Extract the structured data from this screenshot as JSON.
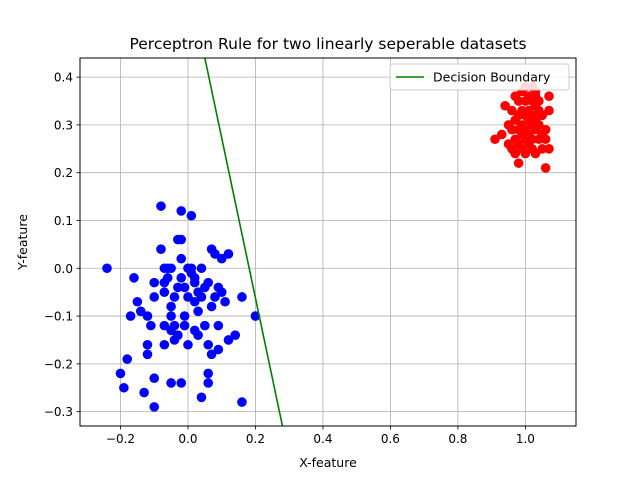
{
  "chart_data": {
    "type": "scatter",
    "title": "Perceptron Rule for two linearly seperable datasets",
    "xlabel": "X-feature",
    "ylabel": "Y-feature",
    "xlim": [
      -0.32,
      1.15
    ],
    "ylim": [
      -0.33,
      0.44
    ],
    "grid": true,
    "legend_position": "top-right",
    "x_ticks": [
      -0.2,
      0.0,
      0.2,
      0.4,
      0.6,
      0.8,
      1.0
    ],
    "x_tick_labels": [
      "−0.2",
      "0.0",
      "0.2",
      "0.4",
      "0.6",
      "0.8",
      "1.0"
    ],
    "y_ticks": [
      -0.3,
      -0.2,
      -0.1,
      0.0,
      0.1,
      0.2,
      0.3,
      0.4
    ],
    "y_tick_labels": [
      "−0.3",
      "−0.2",
      "−0.1",
      "0.0",
      "0.1",
      "0.2",
      "0.3",
      "0.4"
    ],
    "series": [
      {
        "color": "#0000ff",
        "kind": "scatter",
        "points": [
          [
            -0.24,
            0.0
          ],
          [
            -0.2,
            -0.22
          ],
          [
            -0.19,
            -0.25
          ],
          [
            -0.18,
            -0.19
          ],
          [
            -0.17,
            -0.1
          ],
          [
            -0.16,
            -0.02
          ],
          [
            -0.15,
            -0.07
          ],
          [
            -0.14,
            -0.09
          ],
          [
            -0.13,
            -0.26
          ],
          [
            -0.12,
            -0.18
          ],
          [
            -0.12,
            -0.16
          ],
          [
            -0.11,
            -0.12
          ],
          [
            -0.12,
            -0.1
          ],
          [
            -0.1,
            -0.06
          ],
          [
            -0.1,
            -0.03
          ],
          [
            -0.1,
            -0.23
          ],
          [
            -0.1,
            -0.29
          ],
          [
            -0.08,
            0.13
          ],
          [
            -0.08,
            0.04
          ],
          [
            -0.07,
            0.0
          ],
          [
            -0.07,
            -0.03
          ],
          [
            -0.07,
            -0.05
          ],
          [
            -0.07,
            -0.12
          ],
          [
            -0.07,
            -0.16
          ],
          [
            -0.06,
            0.0
          ],
          [
            -0.06,
            -0.02
          ],
          [
            -0.05,
            -0.08
          ],
          [
            -0.05,
            -0.1
          ],
          [
            -0.05,
            -0.13
          ],
          [
            -0.05,
            -0.24
          ],
          [
            -0.05,
            0.0
          ],
          [
            -0.04,
            -0.06
          ],
          [
            -0.04,
            -0.12
          ],
          [
            -0.04,
            -0.15
          ],
          [
            -0.03,
            0.06
          ],
          [
            -0.03,
            -0.04
          ],
          [
            -0.03,
            -0.14
          ],
          [
            -0.02,
            -0.24
          ],
          [
            -0.02,
            0.06
          ],
          [
            -0.02,
            -0.02
          ],
          [
            -0.02,
            0.02
          ],
          [
            -0.01,
            -0.1
          ],
          [
            -0.01,
            -0.12
          ],
          [
            -0.01,
            -0.04
          ],
          [
            -0.02,
            0.12
          ],
          [
            0.0,
            0.0
          ],
          [
            0.0,
            -0.06
          ],
          [
            0.0,
            -0.16
          ],
          [
            0.01,
            0.11
          ],
          [
            0.01,
            0.0
          ],
          [
            0.01,
            -0.01
          ],
          [
            0.02,
            -0.03
          ],
          [
            0.02,
            -0.07
          ],
          [
            0.02,
            -0.13
          ],
          [
            0.02,
            -0.02
          ],
          [
            0.03,
            -0.05
          ],
          [
            0.03,
            -0.09
          ],
          [
            0.03,
            -0.14
          ],
          [
            0.04,
            0.0
          ],
          [
            0.04,
            -0.06
          ],
          [
            0.04,
            -0.27
          ],
          [
            0.05,
            -0.04
          ],
          [
            0.05,
            -0.12
          ],
          [
            0.06,
            -0.24
          ],
          [
            0.06,
            -0.03
          ],
          [
            0.06,
            -0.16
          ],
          [
            0.06,
            -0.22
          ],
          [
            0.07,
            0.04
          ],
          [
            0.07,
            -0.08
          ],
          [
            0.07,
            -0.18
          ],
          [
            0.08,
            0.03
          ],
          [
            0.08,
            -0.06
          ],
          [
            0.09,
            -0.04
          ],
          [
            0.09,
            -0.12
          ],
          [
            0.09,
            -0.17
          ],
          [
            0.1,
            0.02
          ],
          [
            0.1,
            -0.05
          ],
          [
            0.11,
            -0.07
          ],
          [
            0.12,
            0.03
          ],
          [
            0.12,
            -0.15
          ],
          [
            0.14,
            -0.14
          ],
          [
            0.16,
            -0.06
          ],
          [
            0.16,
            -0.28
          ],
          [
            0.2,
            -0.1
          ]
        ]
      },
      {
        "color": "#ff0000",
        "kind": "scatter",
        "points": [
          [
            0.91,
            0.27
          ],
          [
            0.93,
            0.28
          ],
          [
            0.94,
            0.34
          ],
          [
            0.95,
            0.3
          ],
          [
            0.95,
            0.26
          ],
          [
            0.96,
            0.29
          ],
          [
            0.96,
            0.33
          ],
          [
            0.96,
            0.25
          ],
          [
            0.97,
            0.36
          ],
          [
            0.97,
            0.31
          ],
          [
            0.97,
            0.27
          ],
          [
            0.97,
            0.24
          ],
          [
            0.98,
            0.35
          ],
          [
            0.98,
            0.32
          ],
          [
            0.98,
            0.29
          ],
          [
            0.98,
            0.26
          ],
          [
            0.98,
            0.22
          ],
          [
            0.99,
            0.37
          ],
          [
            0.99,
            0.33
          ],
          [
            0.99,
            0.3
          ],
          [
            0.99,
            0.28
          ],
          [
            0.99,
            0.25
          ],
          [
            1.0,
            0.38
          ],
          [
            1.0,
            0.35
          ],
          [
            1.0,
            0.32
          ],
          [
            1.0,
            0.29
          ],
          [
            1.0,
            0.27
          ],
          [
            1.0,
            0.24
          ],
          [
            1.01,
            0.36
          ],
          [
            1.01,
            0.33
          ],
          [
            1.01,
            0.31
          ],
          [
            1.01,
            0.28
          ],
          [
            1.01,
            0.26
          ],
          [
            1.02,
            0.38
          ],
          [
            1.02,
            0.35
          ],
          [
            1.02,
            0.32
          ],
          [
            1.02,
            0.3
          ],
          [
            1.02,
            0.27
          ],
          [
            1.02,
            0.25
          ],
          [
            1.03,
            0.36
          ],
          [
            1.03,
            0.34
          ],
          [
            1.03,
            0.31
          ],
          [
            1.03,
            0.29
          ],
          [
            1.03,
            0.24
          ],
          [
            1.04,
            0.33
          ],
          [
            1.04,
            0.3
          ],
          [
            1.04,
            0.27
          ],
          [
            1.04,
            0.35
          ],
          [
            1.05,
            0.32
          ],
          [
            1.05,
            0.28
          ],
          [
            1.05,
            0.25
          ],
          [
            1.06,
            0.27
          ],
          [
            1.06,
            0.21
          ],
          [
            1.07,
            0.36
          ],
          [
            1.07,
            0.33
          ],
          [
            1.07,
            0.25
          ],
          [
            1.06,
            0.29
          ],
          [
            1.03,
            0.37
          ]
        ]
      },
      {
        "name": "Decision Boundary",
        "color": "#008000",
        "kind": "line",
        "points": [
          [
            0.05,
            0.44
          ],
          [
            0.28,
            -0.33
          ]
        ]
      }
    ]
  }
}
